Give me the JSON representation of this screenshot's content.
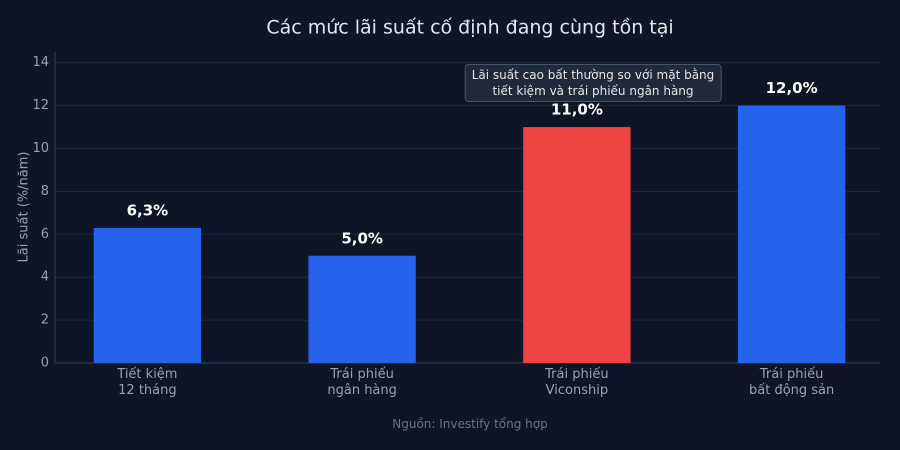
{
  "chart_data": {
    "type": "bar",
    "title": "Các mức lãi suất cố định đang cùng tồn tại",
    "y_label": "Lãi suất (%/năm)",
    "source": "Nguồn: Investify tổng hợp",
    "annotation": "Lãi suất cao bất thường so với mặt bằng\ntiết kiệm và trái phiếu ngân hàng",
    "categories": [
      "Tiết kiệm\n12 tháng",
      "Trái phiếu\nngân hàng",
      "Trái phiếu\nViconship",
      "Trái phiếu\nbất động sản"
    ],
    "values": [
      6.3,
      5.0,
      11.0,
      12.0
    ],
    "value_labels": [
      "6,3%",
      "5,0%",
      "11,0%",
      "12,0%"
    ],
    "colors": [
      "#2563eb",
      "#2563eb",
      "#ef4444",
      "#2563eb"
    ],
    "ylim": [
      0,
      14.5
    ],
    "yticks": [
      0,
      2,
      4,
      6,
      8,
      10,
      12,
      14
    ],
    "grid": true
  }
}
